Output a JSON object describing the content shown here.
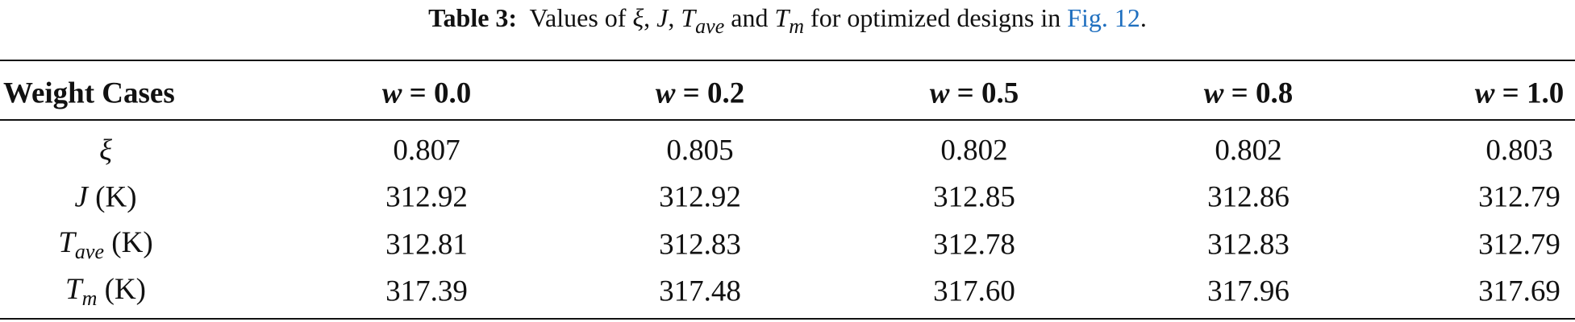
{
  "caption": {
    "label": "Table 3:",
    "parts": [
      "Values of ",
      "ξ",
      ", ",
      "J",
      ", ",
      "T",
      "ave",
      " and ",
      "T",
      "m",
      " for optimized designs in ",
      "Fig. 12",
      "."
    ]
  },
  "table": {
    "header": {
      "label": "Weight Cases",
      "columns": [
        [
          "w",
          "= 0.0"
        ],
        [
          "w",
          "= 0.2"
        ],
        [
          "w",
          "= 0.5"
        ],
        [
          "w",
          "= 0.8"
        ],
        [
          "w",
          "= 1.0"
        ]
      ]
    },
    "rows": [
      {
        "label": [
          "ξ"
        ],
        "values": [
          "0.807",
          "0.805",
          "0.802",
          "0.802",
          "0.803"
        ]
      },
      {
        "label": [
          "J",
          "(K)"
        ],
        "values": [
          "312.92",
          "312.92",
          "312.85",
          "312.86",
          "312.79"
        ]
      },
      {
        "label": [
          "T",
          "ave",
          "(K)"
        ],
        "values": [
          "312.81",
          "312.83",
          "312.78",
          "312.83",
          "312.79"
        ]
      },
      {
        "label": [
          "T",
          "m",
          "(K)"
        ],
        "values": [
          "317.39",
          "317.48",
          "317.60",
          "317.96",
          "317.69"
        ]
      }
    ]
  }
}
